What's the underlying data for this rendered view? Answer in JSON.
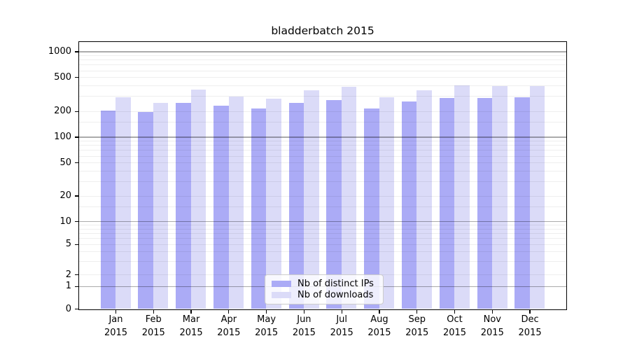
{
  "chart_data": {
    "type": "bar",
    "title": "bladderbatch 2015",
    "x_tick_year": "2015",
    "categories": [
      "Jan",
      "Feb",
      "Mar",
      "Apr",
      "May",
      "Jun",
      "Jul",
      "Aug",
      "Sep",
      "Oct",
      "Nov",
      "Dec"
    ],
    "series": [
      {
        "name": "Nb of distinct IPs",
        "color": "#ababf6",
        "values": [
          204,
          198,
          252,
          235,
          216,
          252,
          270,
          218,
          264,
          288,
          290,
          295
        ]
      },
      {
        "name": "Nb of downloads",
        "color": "#dbdbf8",
        "values": [
          291,
          250,
          360,
          297,
          282,
          354,
          391,
          293,
          353,
          404,
          394,
          395
        ]
      }
    ],
    "yscale": "symlog",
    "ylim": [
      0,
      1300
    ],
    "y_ticks": [
      0,
      1,
      2,
      5,
      10,
      20,
      50,
      100,
      200,
      500,
      1000
    ],
    "y_major_gridlines": [
      1,
      10,
      100,
      1000
    ],
    "y_minor_gridlines": [
      2,
      3,
      4,
      5,
      6,
      7,
      8,
      9,
      15,
      20,
      30,
      40,
      50,
      60,
      70,
      80,
      90,
      150,
      200,
      300,
      400,
      500,
      600,
      700,
      800,
      900
    ],
    "grid": "both",
    "legend": {
      "location": "lower center",
      "entries": [
        "Nb of distinct IPs",
        "Nb of downloads"
      ]
    }
  }
}
